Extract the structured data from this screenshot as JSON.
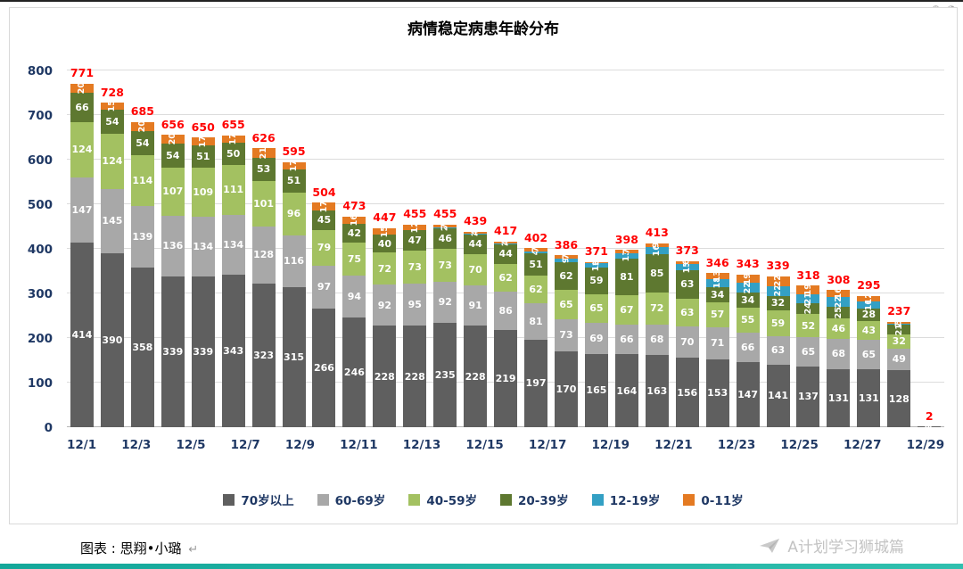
{
  "title": "病情稳定病患年龄分布",
  "corner_icons": [
    "⊕",
    "◔"
  ],
  "footer": {
    "caption": "图表 : 思翔•小璐",
    "return_mark": "↵",
    "watermark": "A计划学习狮城篇"
  },
  "chart_data": {
    "type": "bar",
    "stacked": true,
    "title": "病情稳定病患年龄分布",
    "categories": [
      "12/1",
      "12/2",
      "12/3",
      "12/4",
      "12/5",
      "12/6",
      "12/7",
      "12/8",
      "12/9",
      "12/10",
      "12/11",
      "12/12",
      "12/13",
      "12/14",
      "12/15",
      "12/16",
      "12/17",
      "12/18",
      "12/19",
      "12/20",
      "12/21",
      "12/22",
      "12/23",
      "12/24",
      "12/25",
      "12/26",
      "12/27",
      "12/28",
      "12/29"
    ],
    "x_tick_interval": 2,
    "ylim": [
      0,
      800
    ],
    "y_ticks": [
      0,
      100,
      200,
      300,
      400,
      500,
      600,
      700,
      800
    ],
    "grid": true,
    "legend_position": "bottom",
    "total_label_color": "#FF0000",
    "series": [
      {
        "name": "70岁以上",
        "color": "#5f5f5f",
        "values": [
          414,
          390,
          358,
          339,
          339,
          343,
          323,
          315,
          266,
          246,
          228,
          228,
          235,
          228,
          219,
          197,
          170,
          165,
          164,
          163,
          156,
          153,
          147,
          141,
          137,
          131,
          131,
          128,
          2
        ]
      },
      {
        "name": "60-69岁",
        "color": "#a8a8a8",
        "values": [
          147,
          145,
          139,
          136,
          134,
          134,
          128,
          116,
          97,
          94,
          92,
          95,
          92,
          91,
          86,
          81,
          73,
          69,
          66,
          68,
          70,
          71,
          66,
          63,
          65,
          68,
          65,
          49,
          0
        ]
      },
      {
        "name": "40-59岁",
        "color": "#a3c161",
        "values": [
          124,
          124,
          114,
          107,
          109,
          111,
          101,
          96,
          79,
          75,
          72,
          73,
          73,
          70,
          62,
          62,
          65,
          65,
          67,
          72,
          63,
          57,
          55,
          59,
          52,
          46,
          43,
          32,
          0
        ]
      },
      {
        "name": "20-39岁",
        "color": "#5e7830",
        "values": [
          66,
          54,
          54,
          54,
          51,
          50,
          53,
          51,
          45,
          42,
          40,
          47,
          46,
          44,
          44,
          51,
          62,
          59,
          81,
          85,
          63,
          34,
          34,
          32,
          24,
          25,
          28,
          21,
          0
        ]
      },
      {
        "name": "12-19岁",
        "color": "#33a0c4",
        "values": [
          0,
          0,
          0,
          0,
          0,
          0,
          0,
          0,
          0,
          0,
          0,
          0,
          2,
          2,
          2,
          4,
          9,
          10,
          13,
          16,
          15,
          18,
          22,
          22,
          21,
          22,
          16,
          2,
          0
        ]
      },
      {
        "name": "0-11岁",
        "color": "#e47a22",
        "values": [
          20,
          15,
          20,
          20,
          17,
          17,
          21,
          17,
          17,
          16,
          15,
          12,
          7,
          4,
          4,
          7,
          7,
          3,
          7,
          9,
          6,
          13,
          19,
          22,
          19,
          16,
          12,
          5,
          0
        ]
      }
    ],
    "totals": [
      771,
      728,
      685,
      656,
      650,
      655,
      626,
      595,
      504,
      473,
      447,
      455,
      455,
      439,
      417,
      402,
      386,
      371,
      398,
      413,
      373,
      346,
      343,
      339,
      318,
      308,
      295,
      237,
      2
    ]
  }
}
